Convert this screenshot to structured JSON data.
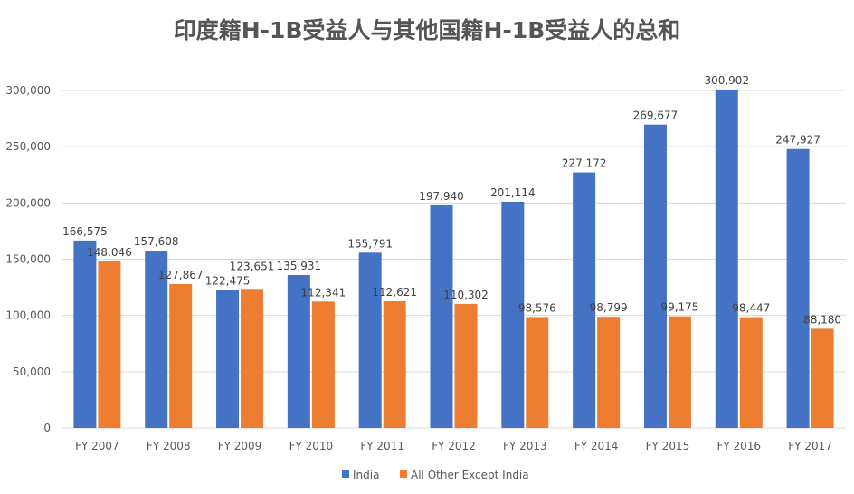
{
  "chart_data": {
    "type": "bar",
    "title": "印度籍H-1B受益人与其他国籍H-1B受益人的总和",
    "categories": [
      "FY 2007",
      "FY 2008",
      "FY 2009",
      "FY 2010",
      "FY 2011",
      "FY 2012",
      "FY 2013",
      "FY 2014",
      "FY 2015",
      "FY 2016",
      "FY 2017"
    ],
    "series": [
      {
        "name": "India",
        "color": "#4472C4",
        "values": [
          166575,
          157608,
          122475,
          135931,
          155791,
          197940,
          201114,
          227172,
          269677,
          300902,
          247927
        ]
      },
      {
        "name": "All Other Except India",
        "color": "#ED7D31",
        "values": [
          148046,
          127867,
          123651,
          112341,
          112621,
          110302,
          98576,
          98799,
          99175,
          98447,
          88180
        ]
      }
    ],
    "yticks": [
      "0",
      "50,000",
      "100,000",
      "150,000",
      "200,000",
      "250,000",
      "300,000"
    ],
    "ylim": [
      0,
      300000
    ],
    "grid": true,
    "legend": "bottom"
  }
}
